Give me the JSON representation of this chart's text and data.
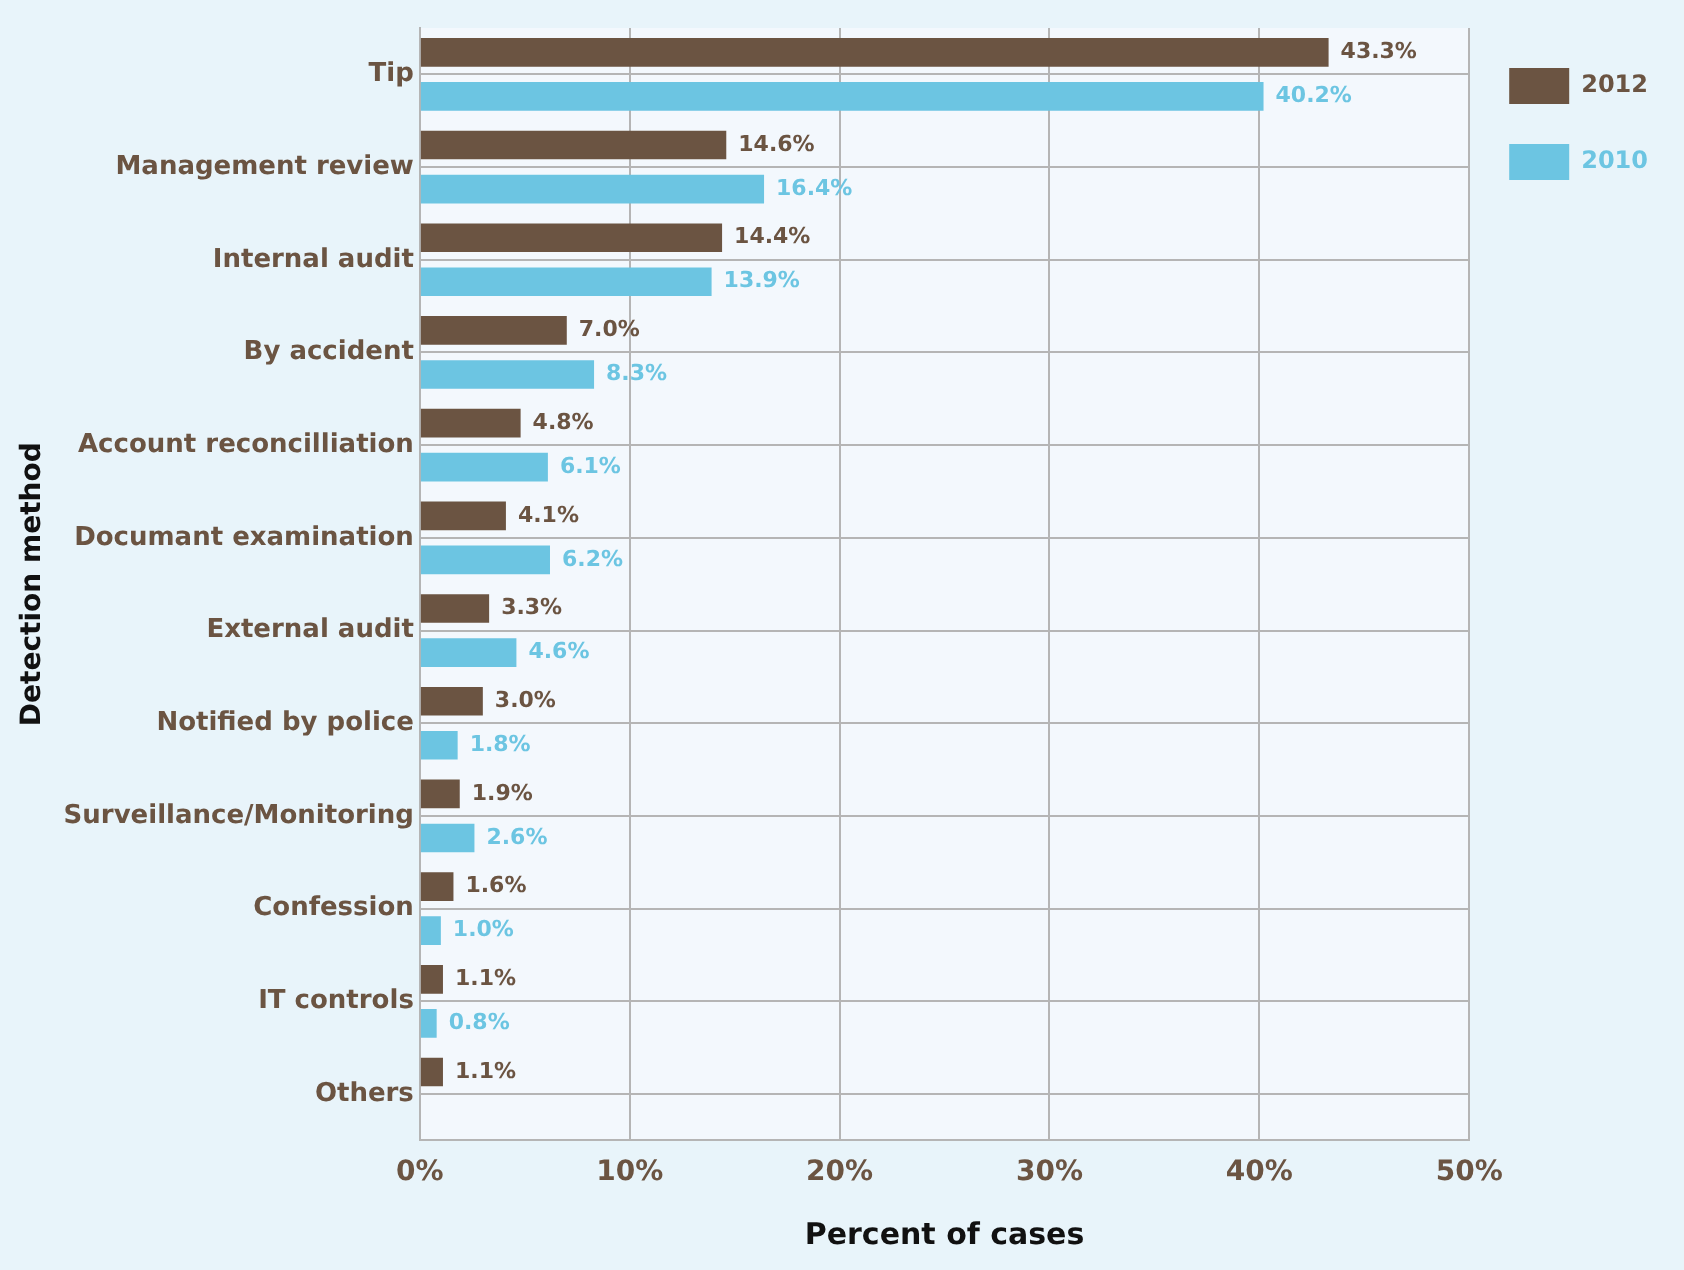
{
  "chart_data": {
    "type": "bar",
    "orientation": "horizontal",
    "xlabel": "Percent of cases",
    "ylabel": "Detection method",
    "categories": [
      "Tip",
      "Management review",
      "Internal audit",
      "By accident",
      "Account reconcilliation",
      "Documant examination",
      "External audit",
      "Notified by police",
      "Surveillance/Monitoring",
      "Confession",
      "IT controls",
      "Others"
    ],
    "series": [
      {
        "name": "2012",
        "color": "#6b5442",
        "values": [
          43.3,
          14.6,
          14.4,
          7.0,
          4.8,
          4.1,
          3.3,
          3.0,
          1.9,
          1.6,
          1.1,
          1.1
        ],
        "value_labels": [
          "43.3%",
          "14.6%",
          "14.4%",
          "7.0%",
          "4.8%",
          "4.1%",
          "3.3%",
          "3.0%",
          "1.9%",
          "1.6%",
          "1.1%",
          "1.1%"
        ]
      },
      {
        "name": "2010",
        "color": "#6cc5e2",
        "values": [
          40.2,
          16.4,
          13.9,
          8.3,
          6.1,
          6.2,
          4.6,
          1.8,
          2.6,
          1.0,
          0.8,
          null
        ],
        "value_labels": [
          "40.2%",
          "16.4%",
          "13.9%",
          "8.3%",
          "6.1%",
          "6.2%",
          "4.6%",
          "1.8%",
          "2.6%",
          "1.0%",
          "0.8%",
          null
        ]
      }
    ],
    "xlim": [
      0,
      50
    ],
    "xticks": [
      {
        "value": 0,
        "label": "0%"
      },
      {
        "value": 10,
        "label": "10%"
      },
      {
        "value": 20,
        "label": "20%"
      },
      {
        "value": 30,
        "label": "30%"
      },
      {
        "value": 40,
        "label": "40%"
      },
      {
        "value": 50,
        "label": "50%"
      }
    ],
    "grid": true,
    "legend": "top right"
  }
}
